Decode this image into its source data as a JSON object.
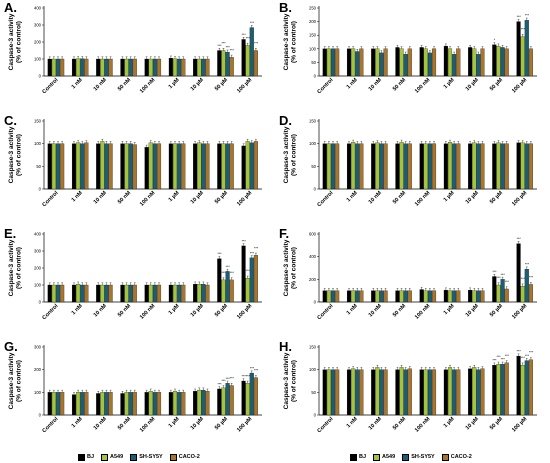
{
  "legend": [
    {
      "name": "BJ",
      "color": "#000000"
    },
    {
      "name": "A549",
      "color": "#a3c43c"
    },
    {
      "name": "SH-SY5Y",
      "color": "#1c5e73"
    },
    {
      "name": "CACO-2",
      "color": "#a8752e"
    }
  ],
  "chart_data": [
    {
      "panel": "A.",
      "type": "bar",
      "ylabel": "Caspase-3 activity\n(% of control)",
      "ylim": [
        0,
        400
      ],
      "yticks": [
        "0",
        "100",
        "200",
        "300",
        "400"
      ],
      "categories": [
        "Control",
        "1 nM",
        "10 nM",
        "50 nM",
        "100 nM",
        "1 µM",
        "10 µM",
        "50 µM",
        "100 µM"
      ],
      "series": [
        {
          "name": "BJ",
          "values": [
            100,
            100,
            100,
            100,
            100,
            105,
            100,
            150,
            215
          ]
        },
        {
          "name": "A549",
          "values": [
            100,
            102,
            100,
            100,
            100,
            102,
            100,
            150,
            180
          ]
        },
        {
          "name": "SH-SY5Y",
          "values": [
            100,
            102,
            100,
            100,
            100,
            100,
            100,
            140,
            285
          ]
        },
        {
          "name": "CACO-2",
          "values": [
            100,
            100,
            100,
            100,
            100,
            100,
            100,
            110,
            150
          ]
        }
      ],
      "annotations": [
        {
          "category": "50 µM",
          "texts": [
            "***",
            "***",
            "***",
            "***"
          ]
        },
        {
          "category": "100 µM",
          "texts": [
            "***",
            "***",
            "***",
            "***"
          ]
        }
      ]
    },
    {
      "panel": "B.",
      "type": "bar",
      "ylabel": "Caspase-3 activity\n(% of control)",
      "ylim": [
        0,
        250
      ],
      "yticks": [
        "0",
        "50",
        "100",
        "150",
        "200",
        "250"
      ],
      "categories": [
        "Control",
        "1 nM",
        "10 nM",
        "50 nM",
        "100 nM",
        "1 µM",
        "10 µM",
        "50 µM",
        "100 µM"
      ],
      "series": [
        {
          "name": "BJ",
          "values": [
            100,
            100,
            100,
            105,
            105,
            110,
            105,
            115,
            200
          ]
        },
        {
          "name": "A549",
          "values": [
            100,
            100,
            100,
            100,
            100,
            100,
            100,
            110,
            145
          ]
        },
        {
          "name": "SH-SY5Y",
          "values": [
            100,
            90,
            85,
            80,
            85,
            80,
            80,
            105,
            205
          ]
        },
        {
          "name": "CACO-2",
          "values": [
            100,
            100,
            100,
            100,
            100,
            100,
            100,
            100,
            100
          ]
        }
      ],
      "annotations": [
        {
          "category": "50 µM",
          "texts": [
            "*",
            "",
            "",
            ""
          ]
        },
        {
          "category": "100 µM",
          "texts": [
            "***",
            "***",
            "***",
            ""
          ]
        }
      ]
    },
    {
      "panel": "C.",
      "type": "bar",
      "ylabel": "Caspase-3 activity\n(% of control)",
      "ylim": [
        0,
        150
      ],
      "yticks": [
        "0",
        "50",
        "100",
        "150"
      ],
      "categories": [
        "Control",
        "1 nM",
        "10 nM",
        "50 nM",
        "100 nM",
        "1 µM",
        "10 µM",
        "50 µM",
        "100 µM"
      ],
      "series": [
        {
          "name": "BJ",
          "values": [
            100,
            100,
            100,
            100,
            92,
            100,
            100,
            100,
            95
          ]
        },
        {
          "name": "A549",
          "values": [
            100,
            102,
            105,
            100,
            102,
            100,
            102,
            100,
            105
          ]
        },
        {
          "name": "SH-SY5Y",
          "values": [
            100,
            100,
            100,
            100,
            100,
            100,
            100,
            100,
            102
          ]
        },
        {
          "name": "CACO-2",
          "values": [
            100,
            102,
            100,
            98,
            100,
            100,
            100,
            100,
            105
          ]
        }
      ],
      "annotations": []
    },
    {
      "panel": "D.",
      "type": "bar",
      "ylabel": "Caspase-3 activity\n(% of control)",
      "ylim": [
        0,
        150
      ],
      "yticks": [
        "0",
        "50",
        "100",
        "150"
      ],
      "categories": [
        "Control",
        "1 nM",
        "10 nM",
        "50 nM",
        "100 nM",
        "1 µM",
        "10 µM",
        "50 µM",
        "100 µM"
      ],
      "series": [
        {
          "name": "BJ",
          "values": [
            100,
            100,
            100,
            100,
            100,
            100,
            100,
            100,
            102
          ]
        },
        {
          "name": "A549",
          "values": [
            100,
            103,
            102,
            103,
            100,
            103,
            102,
            102,
            102
          ]
        },
        {
          "name": "SH-SY5Y",
          "values": [
            100,
            100,
            100,
            100,
            100,
            100,
            100,
            100,
            100
          ]
        },
        {
          "name": "CACO-2",
          "values": [
            100,
            100,
            100,
            100,
            100,
            100,
            100,
            100,
            100
          ]
        }
      ],
      "annotations": []
    },
    {
      "panel": "E.",
      "type": "bar",
      "ylabel": "Caspase-3 activity\n(% of control)",
      "ylim": [
        0,
        400
      ],
      "yticks": [
        "0",
        "100",
        "200",
        "300",
        "400"
      ],
      "categories": [
        "Control",
        "1 nM",
        "10 nM",
        "50 nM",
        "100 nM",
        "1 µM",
        "10 µM",
        "50 µM",
        "100 µM"
      ],
      "series": [
        {
          "name": "BJ",
          "values": [
            100,
            100,
            100,
            100,
            100,
            100,
            105,
            255,
            330
          ]
        },
        {
          "name": "A549",
          "values": [
            100,
            105,
            100,
            100,
            100,
            100,
            105,
            130,
            140
          ]
        },
        {
          "name": "SH-SY5Y",
          "values": [
            100,
            100,
            100,
            100,
            100,
            100,
            105,
            180,
            260
          ]
        },
        {
          "name": "CACO-2",
          "values": [
            100,
            100,
            100,
            100,
            100,
            100,
            100,
            130,
            275
          ]
        }
      ],
      "annotations": [
        {
          "category": "50 µM",
          "texts": [
            "***",
            "***",
            "***",
            "***"
          ]
        },
        {
          "category": "100 µM",
          "texts": [
            "***",
            "***",
            "***",
            "***"
          ]
        }
      ]
    },
    {
      "panel": "F.",
      "type": "bar",
      "ylabel": "Caspase-3 activity\n(% of control)",
      "ylim": [
        0,
        600
      ],
      "yticks": [
        "0",
        "200",
        "400",
        "600"
      ],
      "categories": [
        "Control",
        "1 nM",
        "10 nM",
        "50 nM",
        "100 nM",
        "1 µM",
        "10 µM",
        "50 µM",
        "100 µM"
      ],
      "series": [
        {
          "name": "BJ",
          "values": [
            100,
            100,
            100,
            100,
            110,
            105,
            105,
            225,
            515
          ]
        },
        {
          "name": "A549",
          "values": [
            100,
            100,
            100,
            100,
            100,
            100,
            100,
            150,
            140
          ]
        },
        {
          "name": "SH-SY5Y",
          "values": [
            100,
            100,
            100,
            100,
            100,
            100,
            100,
            200,
            290
          ]
        },
        {
          "name": "CACO-2",
          "values": [
            100,
            100,
            100,
            100,
            100,
            100,
            100,
            115,
            155
          ]
        }
      ],
      "annotations": [
        {
          "category": "50 µM",
          "texts": [
            "***",
            "***",
            "***",
            "***"
          ]
        },
        {
          "category": "100 µM",
          "texts": [
            "***",
            "***",
            "***",
            "***"
          ]
        }
      ]
    },
    {
      "panel": "G.",
      "type": "bar",
      "ylabel": "Caspase-3 activity\n(% of control)",
      "ylim": [
        0,
        300
      ],
      "yticks": [
        "0",
        "100",
        "200",
        "300"
      ],
      "categories": [
        "Control",
        "1 nM",
        "10 nM",
        "50 nM",
        "100 nM",
        "1 µM",
        "10 µM",
        "50 µM",
        "100 µM"
      ],
      "series": [
        {
          "name": "BJ",
          "values": [
            100,
            90,
            95,
            95,
            100,
            100,
            105,
            115,
            150
          ]
        },
        {
          "name": "A549",
          "values": [
            100,
            100,
            100,
            100,
            105,
            105,
            110,
            120,
            140
          ]
        },
        {
          "name": "SH-SY5Y",
          "values": [
            100,
            100,
            100,
            100,
            100,
            100,
            110,
            140,
            185
          ]
        },
        {
          "name": "CACO-2",
          "values": [
            100,
            100,
            100,
            100,
            100,
            100,
            105,
            130,
            165
          ]
        }
      ],
      "annotations": [
        {
          "category": "50 µM",
          "texts": [
            "***",
            "***",
            "***",
            "***"
          ]
        },
        {
          "category": "100 µM",
          "texts": [
            "***",
            "***",
            "***",
            "***"
          ]
        }
      ]
    },
    {
      "panel": "H.",
      "type": "bar",
      "ylabel": "Caspase-3 activity\n(% of control)",
      "ylim": [
        0,
        150
      ],
      "yticks": [
        "0",
        "50",
        "100",
        "150"
      ],
      "categories": [
        "Control",
        "1 nM",
        "10 nM",
        "50 nM",
        "100 nM",
        "1 µM",
        "10 µM",
        "50 µM",
        "100 µM"
      ],
      "series": [
        {
          "name": "BJ",
          "values": [
            100,
            100,
            100,
            100,
            100,
            100,
            102,
            110,
            130
          ]
        },
        {
          "name": "A549",
          "values": [
            100,
            102,
            105,
            105,
            100,
            105,
            105,
            112,
            110
          ]
        },
        {
          "name": "SH-SY5Y",
          "values": [
            100,
            100,
            100,
            100,
            100,
            100,
            100,
            112,
            120
          ]
        },
        {
          "name": "CACO-2",
          "values": [
            100,
            100,
            100,
            102,
            100,
            100,
            102,
            115,
            122
          ]
        }
      ],
      "annotations": [
        {
          "category": "50 µM",
          "texts": [
            "***",
            "***",
            "***",
            "***"
          ]
        },
        {
          "category": "100 µM",
          "texts": [
            "***",
            "***",
            "***",
            "***"
          ]
        }
      ]
    }
  ]
}
